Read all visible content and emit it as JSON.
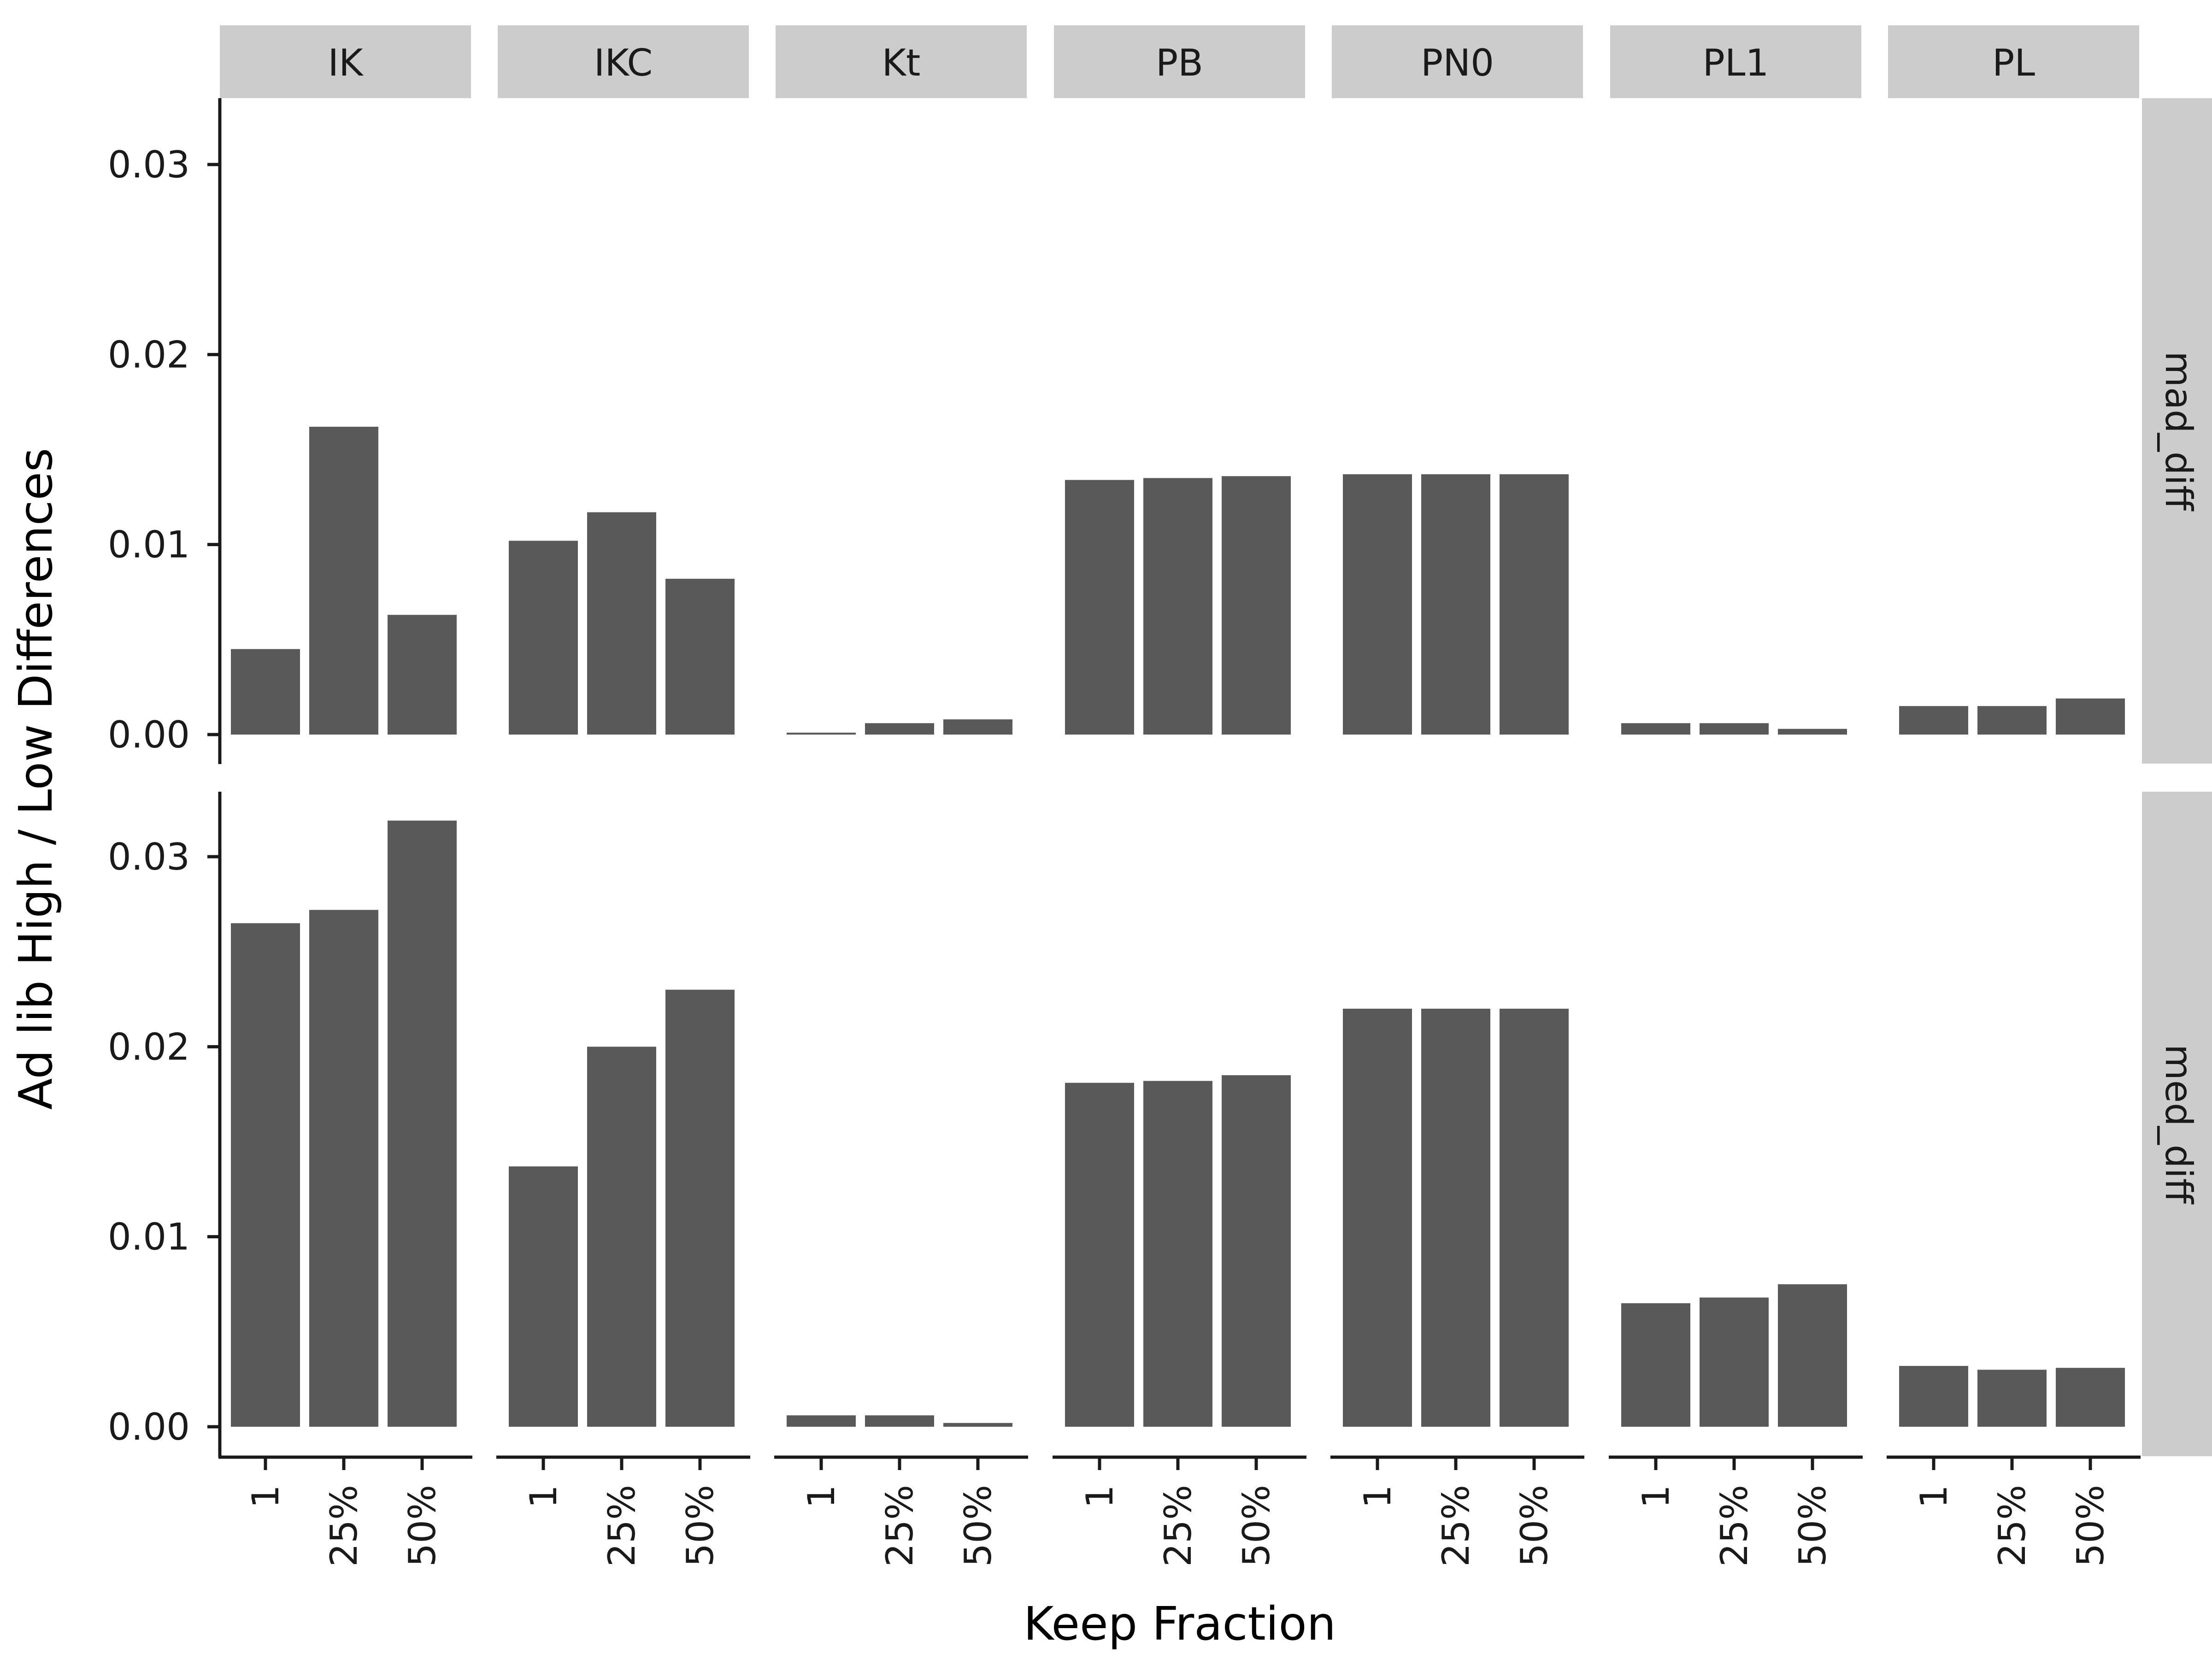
{
  "chart_data": {
    "type": "bar",
    "layout": "facet_grid",
    "xlabel": "Keep Fraction",
    "ylabel": "Ad lib High / Low Differences",
    "categories": [
      "1",
      "25%",
      "50%"
    ],
    "facet_columns": [
      "IK",
      "IKC",
      "Kt",
      "PB",
      "PN0",
      "PL1",
      "PL"
    ],
    "facet_rows": [
      "mad_diff",
      "med_diff"
    ],
    "ylim": [
      0,
      0.033
    ],
    "yticks": [
      0.0,
      0.01,
      0.02,
      0.03
    ],
    "ytick_labels": [
      "0.00",
      "0.01",
      "0.02",
      "0.03"
    ],
    "bar_color": "#595959",
    "strip_color": "#cccccc",
    "panels": {
      "mad_diff": {
        "IK": [
          0.0045,
          0.0162,
          0.0063
        ],
        "IKC": [
          0.0102,
          0.0117,
          0.0082
        ],
        "Kt": [
          0.0001,
          0.0006,
          0.0008
        ],
        "PB": [
          0.0134,
          0.0135,
          0.0136
        ],
        "PN0": [
          0.0137,
          0.0137,
          0.0137
        ],
        "PL1": [
          0.0006,
          0.0006,
          0.0003
        ],
        "PL": [
          0.0015,
          0.0015,
          0.0019
        ]
      },
      "med_diff": {
        "IK": [
          0.0265,
          0.0272,
          0.0319
        ],
        "IKC": [
          0.0137,
          0.02,
          0.023
        ],
        "Kt": [
          0.0006,
          0.0006,
          0.0002
        ],
        "PB": [
          0.0181,
          0.0182,
          0.0185
        ],
        "PN0": [
          0.022,
          0.022,
          0.022
        ],
        "PL1": [
          0.0065,
          0.0068,
          0.0075
        ],
        "PL": [
          0.0032,
          0.003,
          0.0031
        ]
      }
    }
  }
}
